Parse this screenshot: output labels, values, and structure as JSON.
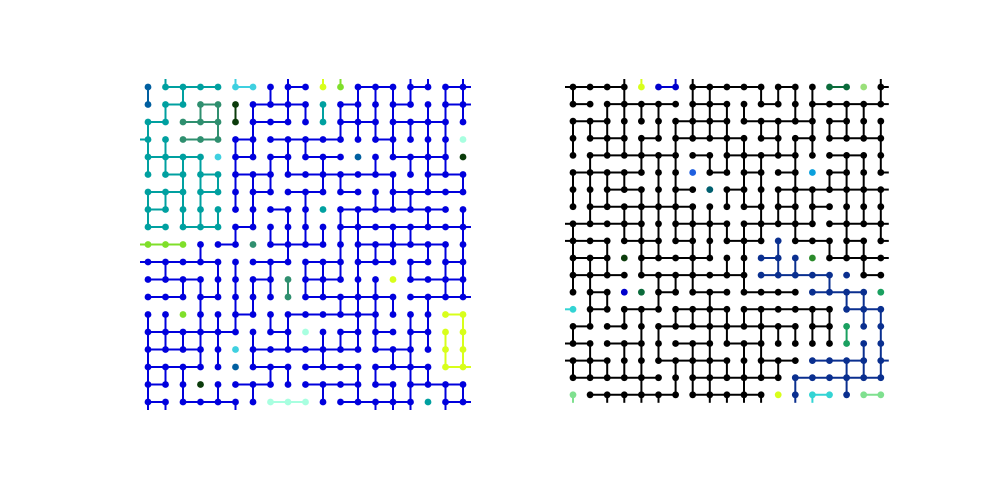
{
  "figure": {
    "description_type": "lattice-percolation-clusters",
    "panels": [
      {
        "id": "left",
        "grid_size": 19,
        "dominant_cluster_color": "#0000dd",
        "minor_cluster_colors": [
          "#00a0a0",
          "#2f8f6f",
          "#d8ff1a",
          "#7fdf2a",
          "#a8ffe0",
          "#3fd0e0",
          "#005fa0",
          "#0b3b0b"
        ],
        "edge_probability": 0.6
      },
      {
        "id": "right",
        "grid_size": 19,
        "dominant_cluster_color": "#000000",
        "minor_cluster_colors": [
          "#0a2f8f",
          "#0000cc",
          "#0b6b3b",
          "#1aa060",
          "#33d4d4",
          "#7fe08f",
          "#d8ff1a",
          "#9ae07a",
          "#1f5fdf",
          "#0aa0dd",
          "#005f6f",
          "#0b3b0b",
          "#2a8a2a"
        ],
        "edge_probability": 0.6
      }
    ]
  }
}
